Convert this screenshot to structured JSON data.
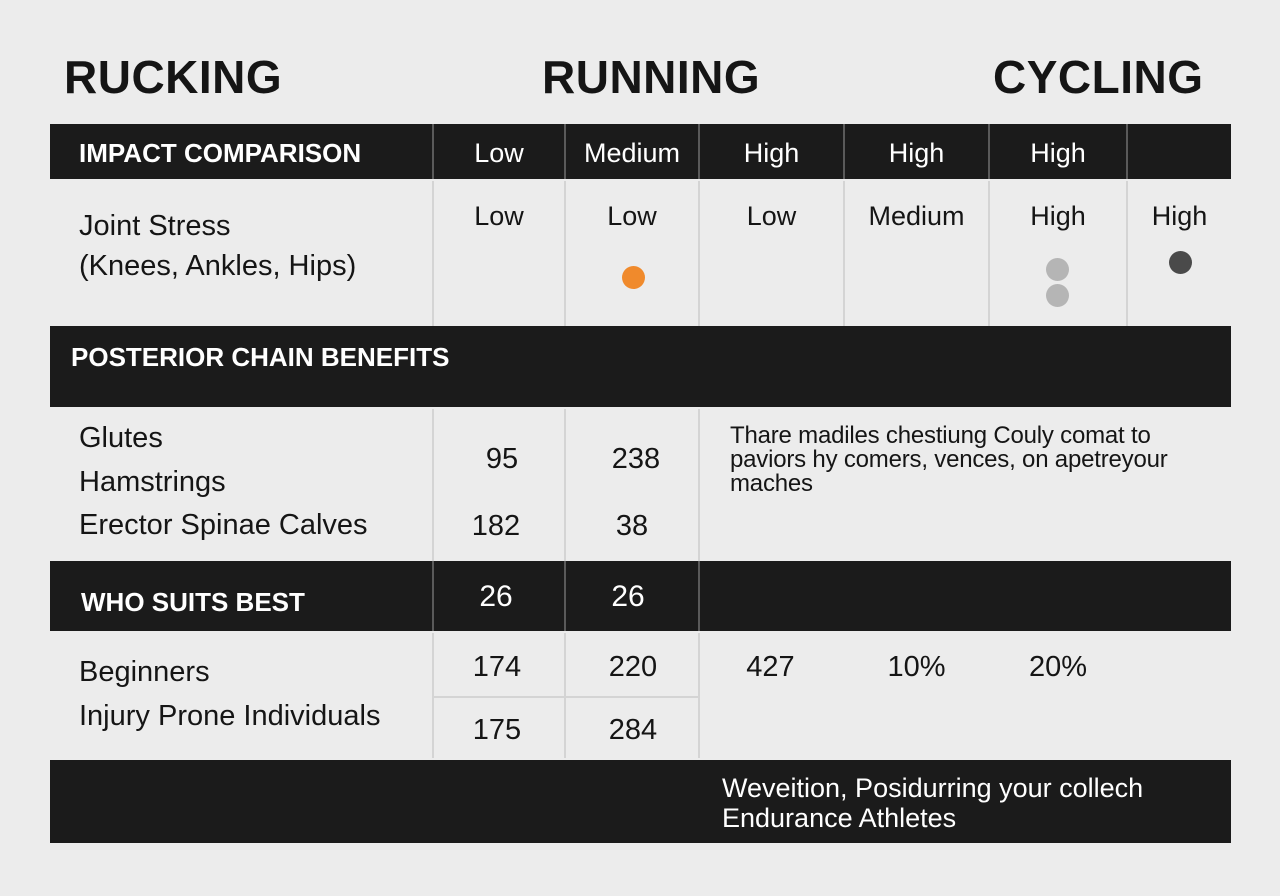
{
  "headings": {
    "rucking": "RUCKING",
    "running": "RUNNING",
    "cycling": "CYCLING"
  },
  "impact": {
    "title": "IMPACT COMPARISON",
    "levels": [
      "Low",
      "Medium",
      "High",
      "High",
      "High"
    ]
  },
  "joint_stress": {
    "label_line1": "Joint Stress",
    "label_line2": "(Knees, Ankles, Hips)",
    "values": [
      "Low",
      "Low",
      "Low",
      "Medium",
      "High",
      "High"
    ]
  },
  "posterior": {
    "title": "POSTERIOR CHAIN BENEFITS",
    "label_glutes": "Glutes",
    "label_hamstrings": "Hamstrings",
    "label_erector": "Erector Spinae  Calves",
    "row1": [
      "95",
      "238"
    ],
    "row2": [
      "182",
      "38"
    ],
    "note_line1": "Thare madiles chestiung Couly comat to",
    "note_line2": "paviors hy comers, vences, on apetreyour",
    "note_line3": "maches"
  },
  "who_suits": {
    "title": "WHO SUITS BEST",
    "values": [
      "26",
      "26"
    ]
  },
  "groups": {
    "label_beginners": "Beginners",
    "label_injury": "Injury Prone Individuals",
    "row1": [
      "174",
      "220",
      "427",
      "10%",
      "20%"
    ],
    "row2": [
      "175",
      "284"
    ]
  },
  "footer": {
    "line1": "Weveition, Posidurring your collech",
    "line2": "Endurance Athletes"
  },
  "colors": {
    "bar": "#1b1b1b",
    "background": "#ececec",
    "accent_dot": "#f08a2c",
    "grey_dot": "#b5b5b5",
    "dark_dot": "#4a4a4a"
  }
}
